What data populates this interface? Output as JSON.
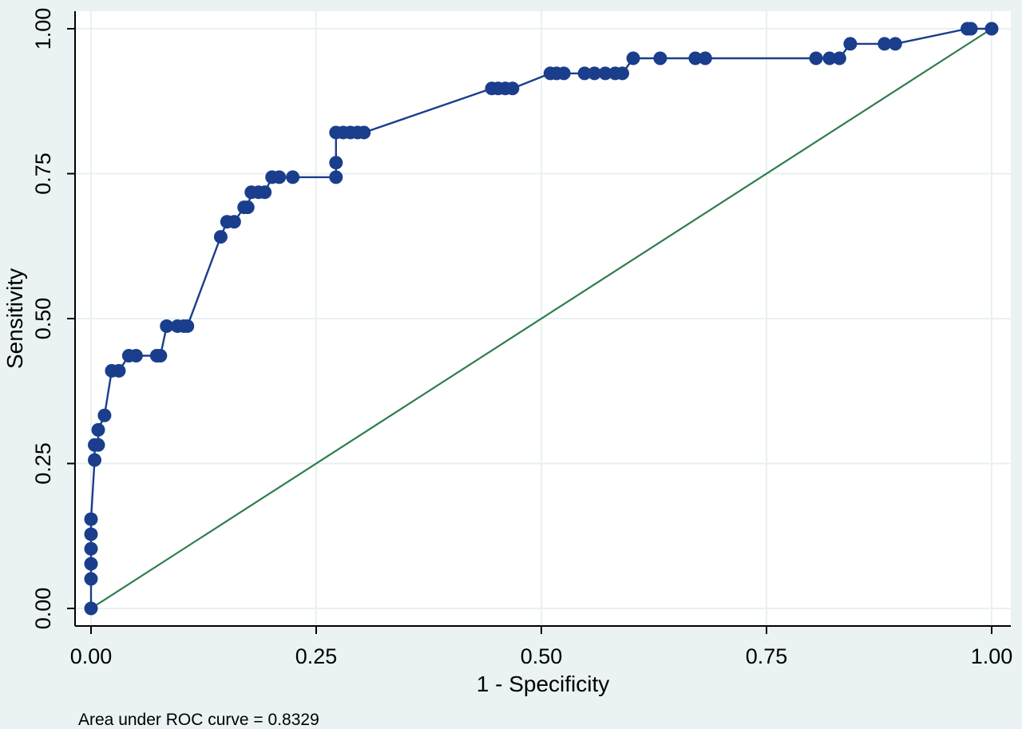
{
  "chart_data": {
    "type": "line",
    "xlabel": "1 - Specificity",
    "ylabel": "Sensitivity",
    "xlim": [
      0,
      1
    ],
    "ylim": [
      0,
      1
    ],
    "x_ticks": [
      "0.00",
      "0.25",
      "0.50",
      "0.75",
      "1.00"
    ],
    "y_ticks": [
      "0.00",
      "0.25",
      "0.50",
      "0.75",
      "1.00"
    ],
    "grid": true,
    "note": "Area under ROC curve = 0.8329",
    "colors": {
      "background": "#eaf2f3",
      "plot_background": "#ffffff",
      "grid": "#e8f1f1",
      "roc_curve": "#1a3e8c",
      "reference_line": "#2e7d4f"
    },
    "series": [
      {
        "kind": "roc-curve",
        "points": [
          [
            0.0,
            0.0
          ],
          [
            0.0,
            0.051
          ],
          [
            0.0,
            0.077
          ],
          [
            0.0,
            0.103
          ],
          [
            0.0,
            0.128
          ],
          [
            0.0,
            0.154
          ],
          [
            0.004,
            0.256
          ],
          [
            0.004,
            0.282
          ],
          [
            0.008,
            0.282
          ],
          [
            0.008,
            0.308
          ],
          [
            0.015,
            0.333
          ],
          [
            0.023,
            0.41
          ],
          [
            0.031,
            0.41
          ],
          [
            0.042,
            0.436
          ],
          [
            0.05,
            0.436
          ],
          [
            0.073,
            0.436
          ],
          [
            0.077,
            0.436
          ],
          [
            0.084,
            0.487
          ],
          [
            0.096,
            0.487
          ],
          [
            0.103,
            0.487
          ],
          [
            0.107,
            0.487
          ],
          [
            0.144,
            0.641
          ],
          [
            0.151,
            0.667
          ],
          [
            0.159,
            0.667
          ],
          [
            0.17,
            0.692
          ],
          [
            0.174,
            0.692
          ],
          [
            0.178,
            0.718
          ],
          [
            0.186,
            0.718
          ],
          [
            0.193,
            0.718
          ],
          [
            0.201,
            0.744
          ],
          [
            0.209,
            0.744
          ],
          [
            0.224,
            0.744
          ],
          [
            0.272,
            0.744
          ],
          [
            0.272,
            0.769
          ],
          [
            0.272,
            0.821
          ],
          [
            0.28,
            0.821
          ],
          [
            0.288,
            0.821
          ],
          [
            0.296,
            0.821
          ],
          [
            0.303,
            0.821
          ],
          [
            0.445,
            0.897
          ],
          [
            0.452,
            0.897
          ],
          [
            0.46,
            0.897
          ],
          [
            0.468,
            0.897
          ],
          [
            0.51,
            0.923
          ],
          [
            0.517,
            0.923
          ],
          [
            0.525,
            0.923
          ],
          [
            0.548,
            0.923
          ],
          [
            0.559,
            0.923
          ],
          [
            0.571,
            0.923
          ],
          [
            0.582,
            0.923
          ],
          [
            0.59,
            0.923
          ],
          [
            0.602,
            0.949
          ],
          [
            0.632,
            0.949
          ],
          [
            0.671,
            0.949
          ],
          [
            0.682,
            0.949
          ],
          [
            0.805,
            0.949
          ],
          [
            0.82,
            0.949
          ],
          [
            0.831,
            0.949
          ],
          [
            0.843,
            0.974
          ],
          [
            0.881,
            0.974
          ],
          [
            0.893,
            0.974
          ],
          [
            0.973,
            1.0
          ],
          [
            0.977,
            1.0
          ],
          [
            1.0,
            1.0
          ]
        ]
      },
      {
        "kind": "reference-line",
        "points": [
          [
            0,
            0
          ],
          [
            1,
            1
          ]
        ]
      }
    ]
  }
}
